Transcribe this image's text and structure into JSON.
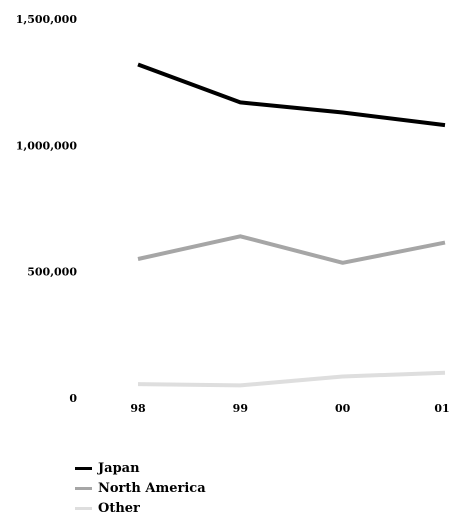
{
  "chart_data": {
    "type": "line",
    "title": "",
    "xlabel": "",
    "ylabel": "",
    "categories": [
      "98",
      "99",
      "00",
      "01"
    ],
    "ylim": [
      0,
      1500000
    ],
    "yticks": [
      "1,500,000",
      "1,000,000",
      "500,000",
      "0"
    ],
    "ytick_values": [
      1500000,
      1000000,
      500000,
      0
    ],
    "grid": false,
    "legend_position": "bottom-left",
    "series": [
      {
        "name": "Japan",
        "color": "#000000",
        "values": [
          1320000,
          1170000,
          1130000,
          1080000
        ]
      },
      {
        "name": "North America",
        "color": "#a6a6a6",
        "values": [
          550000,
          640000,
          535000,
          615000
        ]
      },
      {
        "name": "Other",
        "color": "#dedede",
        "values": [
          55000,
          50000,
          85000,
          100000
        ]
      }
    ]
  }
}
